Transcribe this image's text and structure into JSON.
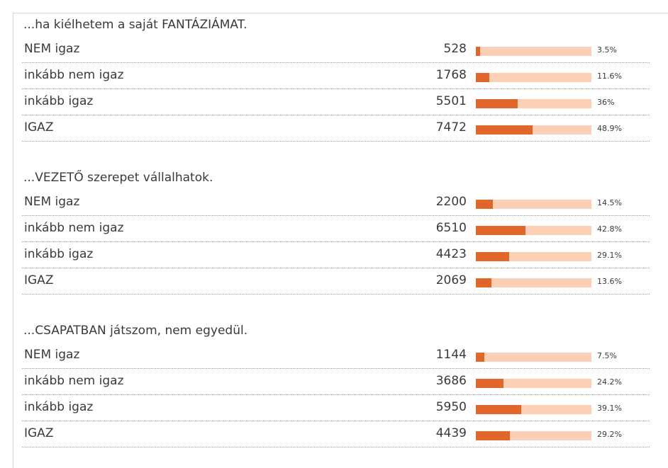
{
  "polls": [
    {
      "question": "...ha kiélhetem a saját FANTÁZIÁMAT.",
      "rows": [
        {
          "label": "NEM igaz",
          "count": 528,
          "percent": 3.5,
          "percent_label": "3.5%"
        },
        {
          "label": "inkább nem igaz",
          "count": 1768,
          "percent": 11.6,
          "percent_label": "11.6%"
        },
        {
          "label": "inkább igaz",
          "count": 5501,
          "percent": 36,
          "percent_label": "36%"
        },
        {
          "label": "IGAZ",
          "count": 7472,
          "percent": 48.9,
          "percent_label": "48.9%"
        }
      ]
    },
    {
      "question": "...VEZETŐ szerepet vállalhatok.",
      "rows": [
        {
          "label": "NEM igaz",
          "count": 2200,
          "percent": 14.5,
          "percent_label": "14.5%"
        },
        {
          "label": "inkább nem igaz",
          "count": 6510,
          "percent": 42.8,
          "percent_label": "42.8%"
        },
        {
          "label": "inkább igaz",
          "count": 4423,
          "percent": 29.1,
          "percent_label": "29.1%"
        },
        {
          "label": "IGAZ",
          "count": 2069,
          "percent": 13.6,
          "percent_label": "13.6%"
        }
      ]
    },
    {
      "question": "...CSAPATBAN játszom, nem egyedül.",
      "rows": [
        {
          "label": "NEM igaz",
          "count": 1144,
          "percent": 7.5,
          "percent_label": "7.5%"
        },
        {
          "label": "inkább nem igaz",
          "count": 3686,
          "percent": 24.2,
          "percent_label": "24.2%"
        },
        {
          "label": "inkább igaz",
          "count": 5950,
          "percent": 39.1,
          "percent_label": "39.1%"
        },
        {
          "label": "IGAZ",
          "count": 4439,
          "percent": 29.2,
          "percent_label": "29.2%"
        }
      ]
    }
  ]
}
